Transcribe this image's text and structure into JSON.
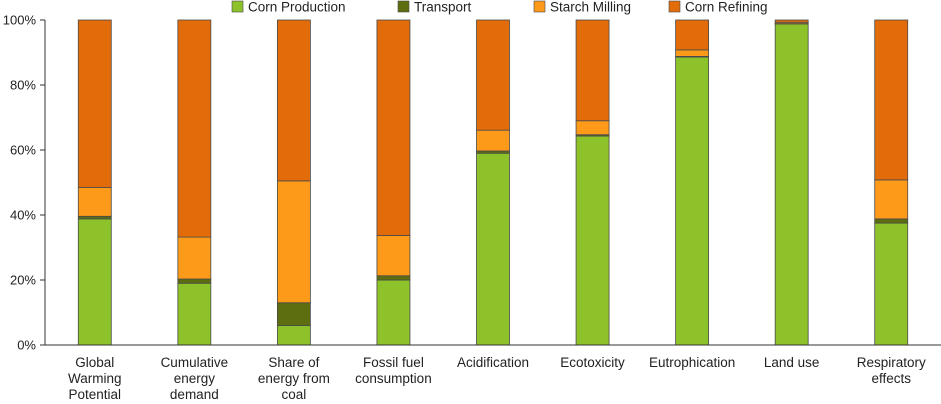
{
  "chart_data": {
    "type": "bar",
    "stacked": true,
    "title": "",
    "xlabel": "",
    "ylabel": "",
    "ylim": [
      0,
      100
    ],
    "yticks": [
      "0%",
      "20%",
      "40%",
      "60%",
      "80%",
      "100%"
    ],
    "legend_position": "top",
    "categories": [
      [
        "Global",
        "Warming",
        "Potential"
      ],
      [
        "Cumulative",
        "energy",
        "demand"
      ],
      [
        "Share of",
        "energy from",
        "coal"
      ],
      [
        "Fossil fuel",
        "consumption"
      ],
      [
        "Acidification"
      ],
      [
        "Ecotoxicity"
      ],
      [
        "Eutrophication"
      ],
      [
        "Land use"
      ],
      [
        "Respiratory",
        "effects"
      ]
    ],
    "series": [
      {
        "name": "Corn Production",
        "color": "#8dc22a",
        "values": [
          38.8,
          19.0,
          6.0,
          20.0,
          59.0,
          64.3,
          88.6,
          98.8,
          37.5
        ]
      },
      {
        "name": "Transport",
        "color": "#5c6e10",
        "values": [
          0.8,
          1.3,
          7.0,
          1.3,
          0.7,
          0.4,
          0.2,
          0.1,
          1.3
        ]
      },
      {
        "name": "Starch Milling",
        "color": "#fd9a1a",
        "values": [
          8.9,
          12.9,
          37.5,
          12.4,
          6.4,
          4.3,
          2.0,
          0.4,
          12.0
        ]
      },
      {
        "name": "Corn Refining",
        "color": "#e36c0a",
        "values": [
          51.5,
          66.8,
          49.5,
          66.3,
          33.9,
          31.0,
          9.2,
          0.7,
          49.2
        ]
      }
    ]
  }
}
